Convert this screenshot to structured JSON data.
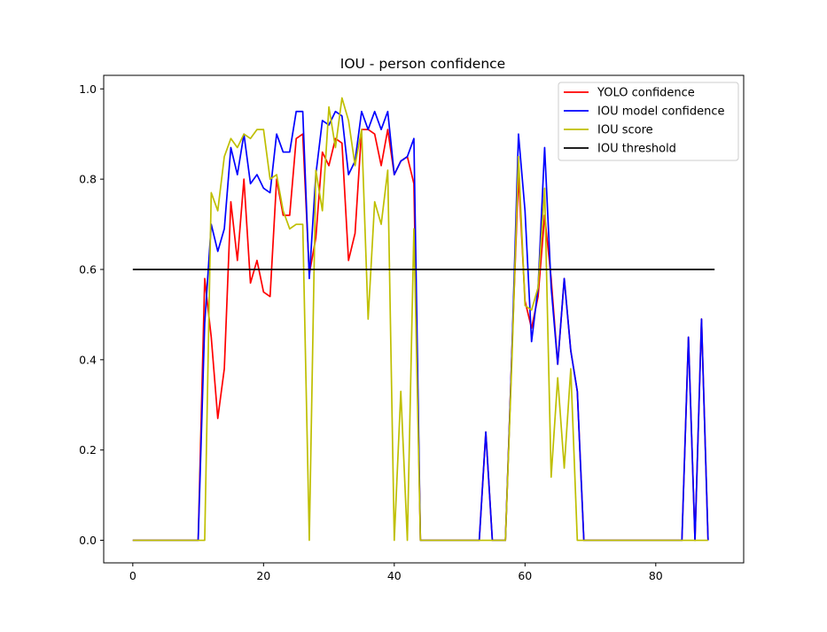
{
  "chart_data": {
    "type": "line",
    "title": "IOU - person confidence",
    "xlabel": "",
    "ylabel": "",
    "xlim": [
      -4.45,
      93.45
    ],
    "ylim": [
      -0.05,
      1.03
    ],
    "xticks": [
      0,
      20,
      40,
      60,
      80
    ],
    "yticks": [
      0.0,
      0.2,
      0.4,
      0.6,
      0.8,
      1.0
    ],
    "ytick_labels": [
      "0.0",
      "0.2",
      "0.4",
      "0.6",
      "0.8",
      "1.0"
    ],
    "grid": false,
    "legend_position": "top-right",
    "series": [
      {
        "name": "YOLO confidence",
        "color": "#ff0000",
        "values": [
          0,
          0,
          0,
          0,
          0,
          0,
          0,
          0,
          0,
          0,
          0,
          0.58,
          0.45,
          0.27,
          0.38,
          0.75,
          0.62,
          0.8,
          0.57,
          0.62,
          0.55,
          0.54,
          0.8,
          0.72,
          0.72,
          0.89,
          0.9,
          0.59,
          0.67,
          0.86,
          0.83,
          0.89,
          0.88,
          0.62,
          0.68,
          0.91,
          0.91,
          0.9,
          0.83,
          0.91,
          0.81,
          0.84,
          0.85,
          0.79,
          0,
          0,
          0,
          0,
          0,
          0,
          0,
          0,
          0,
          0,
          0.24,
          0,
          0,
          0,
          0.42,
          0.81,
          0.53,
          0.47,
          0.54,
          0.72,
          0.58,
          0.39,
          0.58,
          0.42,
          0.33,
          0,
          0,
          0,
          0,
          0,
          0,
          0,
          0,
          0,
          0,
          0,
          0,
          0,
          0,
          0,
          0,
          0.45,
          0,
          0.49,
          0
        ]
      },
      {
        "name": "IOU model confidence",
        "color": "#0000ff",
        "values": [
          0,
          0,
          0,
          0,
          0,
          0,
          0,
          0,
          0,
          0,
          0,
          0.48,
          0.7,
          0.64,
          0.69,
          0.87,
          0.81,
          0.9,
          0.79,
          0.81,
          0.78,
          0.77,
          0.9,
          0.86,
          0.86,
          0.95,
          0.95,
          0.58,
          0.81,
          0.93,
          0.92,
          0.95,
          0.94,
          0.81,
          0.84,
          0.95,
          0.91,
          0.95,
          0.91,
          0.95,
          0.81,
          0.84,
          0.85,
          0.89,
          0,
          0,
          0,
          0,
          0,
          0,
          0,
          0,
          0,
          0,
          0.24,
          0,
          0,
          0,
          0.42,
          0.9,
          0.73,
          0.44,
          0.56,
          0.87,
          0.56,
          0.39,
          0.58,
          0.42,
          0.33,
          0,
          0,
          0,
          0,
          0,
          0,
          0,
          0,
          0,
          0,
          0,
          0,
          0,
          0,
          0,
          0,
          0.45,
          0,
          0.49,
          0
        ]
      },
      {
        "name": "IOU score",
        "color": "#bfbf00",
        "values": [
          0,
          0,
          0,
          0,
          0,
          0,
          0,
          0,
          0,
          0,
          0,
          0,
          0.77,
          0.73,
          0.85,
          0.89,
          0.87,
          0.9,
          0.89,
          0.91,
          0.91,
          0.8,
          0.81,
          0.73,
          0.69,
          0.7,
          0.7,
          0,
          0.82,
          0.73,
          0.96,
          0.87,
          0.98,
          0.93,
          0.83,
          0.91,
          0.49,
          0.75,
          0.7,
          0.82,
          0,
          0.33,
          0,
          0.69,
          0,
          0,
          0,
          0,
          0,
          0,
          0,
          0,
          0,
          0,
          0,
          0,
          0,
          0,
          0.4,
          0.85,
          0.52,
          0.51,
          0.56,
          0.78,
          0.14,
          0.36,
          0.16,
          0.38,
          0,
          0,
          0,
          0,
          0,
          0,
          0,
          0,
          0,
          0,
          0,
          0,
          0,
          0,
          0,
          0,
          0,
          0,
          0,
          0,
          0
        ]
      },
      {
        "name": "IOU threshold",
        "color": "#000000",
        "x": [
          0,
          89
        ],
        "values": [
          0.6,
          0.6
        ]
      }
    ]
  }
}
